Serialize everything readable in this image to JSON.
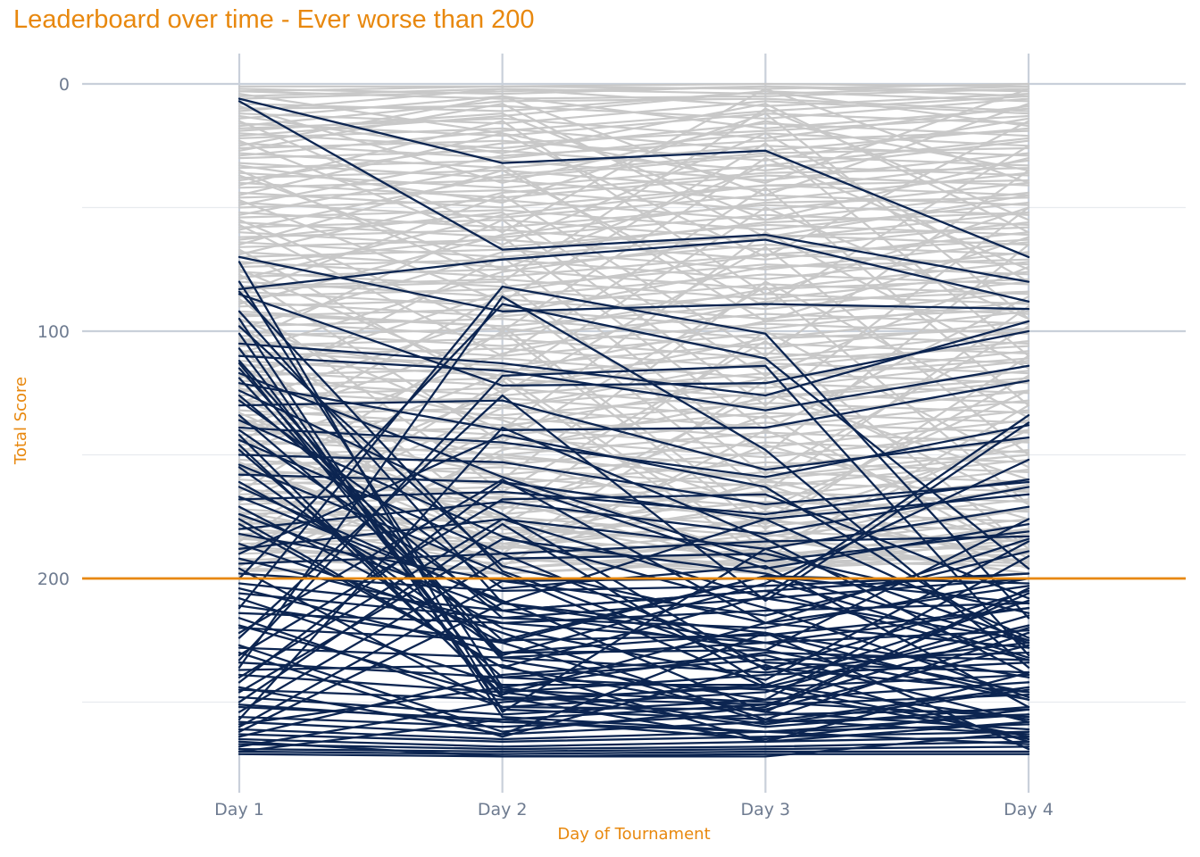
{
  "chart_data": {
    "type": "line",
    "title": "Leaderboard over time - Ever worse than 200",
    "xlabel": "Day of Tournament",
    "ylabel": "Total Score",
    "categories": [
      "Day 1",
      "Day 2",
      "Day 3",
      "Day 4"
    ],
    "ylim": [
      0,
      272
    ],
    "y_reversed": true,
    "y_ticks": [
      0,
      100,
      200
    ],
    "reference_line": {
      "y": 200,
      "color": "#E8880E"
    },
    "grid": true,
    "colors": {
      "highlight": "#0C2551",
      "background": "#C8C8C8",
      "accent": "#E8880E"
    },
    "highlight_rule": "ever worse than 200",
    "highlighted_series": [
      [
        6,
        32,
        27,
        70
      ],
      [
        7,
        67,
        61,
        80
      ],
      [
        70,
        92,
        89,
        91
      ],
      [
        85,
        122,
        121,
        100
      ],
      [
        83,
        71,
        63,
        88
      ],
      [
        105,
        113,
        126,
        96
      ],
      [
        110,
        116,
        132,
        114
      ],
      [
        121,
        140,
        139,
        120
      ],
      [
        130,
        128,
        156,
        143
      ],
      [
        139,
        145,
        159,
        138
      ],
      [
        150,
        153,
        170,
        161
      ],
      [
        158,
        161,
        176,
        166
      ],
      [
        168,
        165,
        174,
        160
      ],
      [
        180,
        169,
        182,
        163
      ],
      [
        188,
        176,
        188,
        171
      ],
      [
        194,
        190,
        185,
        183
      ],
      [
        198,
        205,
        203,
        198
      ],
      [
        206,
        216,
        208,
        200
      ],
      [
        214,
        218,
        213,
        210
      ],
      [
        220,
        225,
        223,
        212
      ],
      [
        228,
        232,
        226,
        221
      ],
      [
        234,
        240,
        233,
        230
      ],
      [
        239,
        246,
        239,
        234
      ],
      [
        245,
        249,
        244,
        239
      ],
      [
        248,
        255,
        249,
        242
      ],
      [
        252,
        257,
        251,
        247
      ],
      [
        256,
        260,
        255,
        253
      ],
      [
        258,
        263,
        258,
        255
      ],
      [
        261,
        265,
        262,
        259
      ],
      [
        263,
        266,
        264,
        262
      ],
      [
        265,
        268,
        266,
        264
      ],
      [
        267,
        269,
        268,
        266
      ],
      [
        269,
        270,
        269,
        268
      ],
      [
        270,
        271,
        270,
        270
      ],
      [
        271,
        272,
        271,
        271
      ],
      [
        112,
        231,
        202,
        152
      ],
      [
        140,
        213,
        229,
        176
      ],
      [
        161,
        220,
        241,
        185
      ],
      [
        72,
        254,
        188,
        225
      ],
      [
        84,
        197,
        236,
        246
      ],
      [
        115,
        233,
        249,
        191
      ],
      [
        128,
        204,
        195,
        252
      ],
      [
        146,
        247,
        218,
        203
      ],
      [
        176,
        236,
        207,
        134
      ],
      [
        190,
        142,
        163,
        228
      ],
      [
        200,
        89,
        111,
        196
      ],
      [
        212,
        82,
        101,
        216
      ],
      [
        224,
        126,
        209,
        137
      ],
      [
        233,
        118,
        114,
        231
      ],
      [
        242,
        161,
        196,
        178
      ],
      [
        250,
        178,
        243,
        209
      ],
      [
        257,
        139,
        184,
        239
      ],
      [
        262,
        210,
        176,
        224
      ],
      [
        236,
        86,
        148,
        236
      ],
      [
        222,
        160,
        218,
        184
      ],
      [
        204,
        230,
        222,
        240
      ],
      [
        196,
        252,
        246,
        215
      ],
      [
        186,
        222,
        257,
        222
      ],
      [
        178,
        236,
        254,
        261
      ],
      [
        171,
        226,
        199,
        202
      ],
      [
        167,
        209,
        254,
        204
      ],
      [
        154,
        198,
        244,
        219
      ],
      [
        144,
        190,
        234,
        238
      ],
      [
        136,
        183,
        212,
        248
      ],
      [
        124,
        174,
        237,
        205
      ],
      [
        117,
        159,
        193,
        181
      ],
      [
        98,
        195,
        218,
        228
      ],
      [
        92,
        210,
        226,
        212
      ],
      [
        80,
        244,
        230,
        233
      ],
      [
        211,
        226,
        258,
        244
      ],
      [
        219,
        248,
        251,
        220
      ],
      [
        227,
        262,
        252,
        206
      ],
      [
        237,
        235,
        266,
        258
      ],
      [
        244,
        263,
        222,
        249
      ],
      [
        251,
        258,
        262,
        267
      ],
      [
        259,
        244,
        259,
        245
      ],
      [
        266,
        272,
        272,
        262
      ],
      [
        270,
        257,
        265,
        253
      ],
      [
        240,
        176,
        208,
        225
      ],
      [
        230,
        264,
        235,
        266
      ],
      [
        216,
        252,
        253,
        227
      ],
      [
        208,
        243,
        243,
        257
      ],
      [
        202,
        213,
        205,
        198
      ],
      [
        192,
        218,
        226,
        246
      ],
      [
        182,
        201,
        215,
        189
      ],
      [
        174,
        213,
        205,
        233
      ],
      [
        163,
        210,
        222,
        269
      ],
      [
        155,
        230,
        229,
        249
      ],
      [
        148,
        240,
        245,
        265
      ],
      [
        142,
        248,
        266,
        238
      ],
      [
        134,
        225,
        199,
        210
      ],
      [
        126,
        216,
        220,
        200
      ],
      [
        119,
        232,
        238,
        226
      ],
      [
        113,
        245,
        250,
        256
      ],
      [
        107,
        246,
        260,
        252
      ],
      [
        101,
        253,
        257,
        263
      ],
      [
        95,
        256,
        262,
        255
      ],
      [
        231,
        168,
        166,
        208
      ],
      [
        246,
        184,
        198,
        226
      ],
      [
        254,
        192,
        190,
        214
      ],
      [
        260,
        201,
        200,
        232
      ],
      [
        264,
        239,
        231,
        258
      ],
      [
        268,
        250,
        243,
        264
      ]
    ],
    "background_series": [
      [
        2,
        4,
        1,
        3
      ],
      [
        3,
        6,
        5,
        2
      ],
      [
        5,
        2,
        9,
        4
      ],
      [
        8,
        11,
        3,
        7
      ],
      [
        10,
        9,
        14,
        6
      ],
      [
        12,
        16,
        7,
        12
      ],
      [
        14,
        5,
        18,
        10
      ],
      [
        16,
        21,
        12,
        16
      ],
      [
        18,
        14,
        22,
        9
      ],
      [
        20,
        26,
        16,
        21
      ],
      [
        22,
        18,
        27,
        18
      ],
      [
        24,
        30,
        20,
        25
      ],
      [
        26,
        23,
        31,
        14
      ],
      [
        28,
        34,
        25,
        29
      ],
      [
        30,
        27,
        35,
        23
      ],
      [
        32,
        38,
        29,
        33
      ],
      [
        34,
        31,
        39,
        28
      ],
      [
        36,
        42,
        33,
        37
      ],
      [
        38,
        35,
        43,
        31
      ],
      [
        40,
        46,
        37,
        41
      ],
      [
        42,
        39,
        47,
        36
      ],
      [
        44,
        50,
        41,
        45
      ],
      [
        46,
        43,
        51,
        40
      ],
      [
        48,
        54,
        45,
        49
      ],
      [
        50,
        47,
        55,
        44
      ],
      [
        52,
        58,
        49,
        53
      ],
      [
        54,
        51,
        59,
        48
      ],
      [
        56,
        62,
        53,
        57
      ],
      [
        58,
        55,
        63,
        52
      ],
      [
        60,
        66,
        57,
        61
      ],
      [
        62,
        59,
        67,
        56
      ],
      [
        64,
        70,
        61,
        65
      ],
      [
        66,
        63,
        71,
        60
      ],
      [
        68,
        74,
        65,
        69
      ],
      [
        70,
        67,
        75,
        64
      ],
      [
        72,
        78,
        69,
        73
      ],
      [
        74,
        71,
        79,
        68
      ],
      [
        76,
        82,
        73,
        77
      ],
      [
        78,
        75,
        83,
        72
      ],
      [
        80,
        86,
        77,
        81
      ],
      [
        82,
        79,
        87,
        76
      ],
      [
        84,
        90,
        81,
        85
      ],
      [
        86,
        83,
        91,
        80
      ],
      [
        88,
        94,
        85,
        89
      ],
      [
        90,
        87,
        95,
        84
      ],
      [
        92,
        98,
        89,
        93
      ],
      [
        94,
        91,
        99,
        88
      ],
      [
        96,
        102,
        93,
        97
      ],
      [
        98,
        95,
        103,
        92
      ],
      [
        100,
        106,
        97,
        101
      ],
      [
        102,
        99,
        107,
        96
      ],
      [
        104,
        110,
        101,
        105
      ],
      [
        106,
        103,
        111,
        100
      ],
      [
        108,
        114,
        105,
        109
      ],
      [
        110,
        107,
        115,
        104
      ],
      [
        112,
        118,
        109,
        113
      ],
      [
        114,
        111,
        119,
        108
      ],
      [
        116,
        122,
        113,
        117
      ],
      [
        118,
        115,
        123,
        112
      ],
      [
        120,
        126,
        117,
        121
      ],
      [
        122,
        119,
        127,
        116
      ],
      [
        124,
        130,
        121,
        125
      ],
      [
        126,
        123,
        131,
        120
      ],
      [
        128,
        134,
        125,
        129
      ],
      [
        130,
        127,
        135,
        124
      ],
      [
        132,
        138,
        129,
        133
      ],
      [
        134,
        131,
        139,
        128
      ],
      [
        136,
        142,
        133,
        137
      ],
      [
        138,
        135,
        143,
        132
      ],
      [
        140,
        146,
        137,
        141
      ],
      [
        142,
        139,
        147,
        136
      ],
      [
        144,
        150,
        141,
        145
      ],
      [
        146,
        143,
        151,
        140
      ],
      [
        148,
        154,
        145,
        149
      ],
      [
        150,
        147,
        155,
        144
      ],
      [
        152,
        158,
        149,
        153
      ],
      [
        154,
        151,
        159,
        148
      ],
      [
        156,
        162,
        153,
        157
      ],
      [
        158,
        155,
        163,
        152
      ],
      [
        160,
        166,
        157,
        161
      ],
      [
        162,
        159,
        167,
        156
      ],
      [
        164,
        170,
        161,
        165
      ],
      [
        166,
        163,
        171,
        160
      ],
      [
        168,
        174,
        165,
        169
      ],
      [
        170,
        167,
        175,
        164
      ],
      [
        172,
        178,
        169,
        173
      ],
      [
        174,
        171,
        179,
        168
      ],
      [
        176,
        182,
        173,
        177
      ],
      [
        178,
        175,
        183,
        172
      ],
      [
        180,
        186,
        177,
        181
      ],
      [
        182,
        179,
        187,
        176
      ],
      [
        184,
        190,
        181,
        185
      ],
      [
        186,
        183,
        191,
        180
      ],
      [
        188,
        194,
        185,
        189
      ],
      [
        190,
        187,
        195,
        184
      ],
      [
        192,
        196,
        189,
        193
      ],
      [
        194,
        191,
        197,
        188
      ],
      [
        196,
        198,
        193,
        195
      ],
      [
        15,
        60,
        2,
        40
      ],
      [
        25,
        5,
        45,
        8
      ],
      [
        35,
        80,
        10,
        55
      ],
      [
        45,
        20,
        70,
        15
      ],
      [
        55,
        100,
        30,
        75
      ],
      [
        65,
        35,
        90,
        25
      ],
      [
        75,
        120,
        50,
        95
      ],
      [
        85,
        45,
        110,
        35
      ],
      [
        95,
        140,
        60,
        115
      ],
      [
        105,
        55,
        130,
        50
      ],
      [
        115,
        160,
        80,
        135
      ],
      [
        125,
        70,
        150,
        65
      ],
      [
        135,
        175,
        100,
        155
      ],
      [
        145,
        85,
        165,
        90
      ],
      [
        155,
        190,
        120,
        170
      ],
      [
        165,
        100,
        180,
        110
      ],
      [
        175,
        195,
        140,
        185
      ],
      [
        185,
        120,
        192,
        130
      ],
      [
        195,
        150,
        160,
        150
      ],
      [
        4,
        20,
        40,
        2
      ],
      [
        9,
        40,
        15,
        35
      ],
      [
        13,
        28,
        8,
        60
      ],
      [
        19,
        12,
        55,
        30
      ],
      [
        23,
        65,
        20,
        80
      ],
      [
        27,
        8,
        62,
        45
      ],
      [
        33,
        48,
        12,
        95
      ],
      [
        37,
        75,
        33,
        22
      ],
      [
        41,
        15,
        85,
        50
      ],
      [
        47,
        88,
        24,
        110
      ],
      [
        53,
        33,
        96,
        62
      ],
      [
        57,
        110,
        42,
        130
      ],
      [
        63,
        52,
        118,
        74
      ],
      [
        67,
        125,
        66,
        150
      ],
      [
        73,
        62,
        140,
        86
      ],
      [
        77,
        145,
        82,
        170
      ],
      [
        83,
        80,
        158,
        98
      ],
      [
        87,
        165,
        104,
        188
      ],
      [
        93,
        98,
        176,
        118
      ],
      [
        97,
        178,
        125,
        160
      ],
      [
        103,
        118,
        188,
        140
      ],
      [
        107,
        188,
        146,
        176
      ],
      [
        113,
        136,
        172,
        124
      ],
      [
        117,
        192,
        160,
        186
      ],
      [
        123,
        152,
        178,
        144
      ],
      [
        127,
        172,
        134,
        192
      ],
      [
        133,
        180,
        186,
        162
      ],
      [
        137,
        158,
        192,
        178
      ],
      [
        143,
        186,
        170,
        194
      ],
      [
        147,
        176,
        194,
        190
      ],
      [
        153,
        194,
        182,
        198
      ],
      [
        157,
        168,
        196,
        180
      ],
      [
        163,
        196,
        188,
        172
      ],
      [
        167,
        184,
        162,
        196
      ],
      [
        173,
        192,
        198,
        182
      ],
      [
        177,
        188,
        176,
        190
      ],
      [
        183,
        198,
        192,
        186
      ],
      [
        187,
        194,
        184,
        198
      ],
      [
        193,
        186,
        196,
        192
      ],
      [
        197,
        196,
        190,
        194
      ],
      [
        1,
        1,
        0,
        1
      ],
      [
        3,
        1,
        2,
        0
      ],
      [
        6,
        3,
        1,
        5
      ],
      [
        11,
        2,
        4,
        1
      ],
      [
        17,
        7,
        6,
        11
      ],
      [
        21,
        13,
        3,
        17
      ],
      [
        29,
        19,
        11,
        5
      ],
      [
        39,
        24,
        19,
        13
      ],
      [
        49,
        29,
        23,
        19
      ],
      [
        59,
        37,
        28,
        26
      ],
      [
        69,
        44,
        36,
        34
      ],
      [
        79,
        53,
        41,
        39
      ],
      [
        89,
        61,
        48,
        46
      ],
      [
        99,
        68,
        56,
        52
      ],
      [
        109,
        76,
        62,
        58
      ],
      [
        119,
        84,
        69,
        63
      ],
      [
        129,
        93,
        74,
        71
      ],
      [
        139,
        101,
        83,
        79
      ],
      [
        149,
        109,
        88,
        84
      ],
      [
        159,
        117,
        96,
        91
      ],
      [
        169,
        124,
        103,
        99
      ],
      [
        179,
        131,
        112,
        106
      ],
      [
        189,
        139,
        119,
        111
      ],
      [
        199,
        148,
        127,
        119
      ]
    ]
  }
}
